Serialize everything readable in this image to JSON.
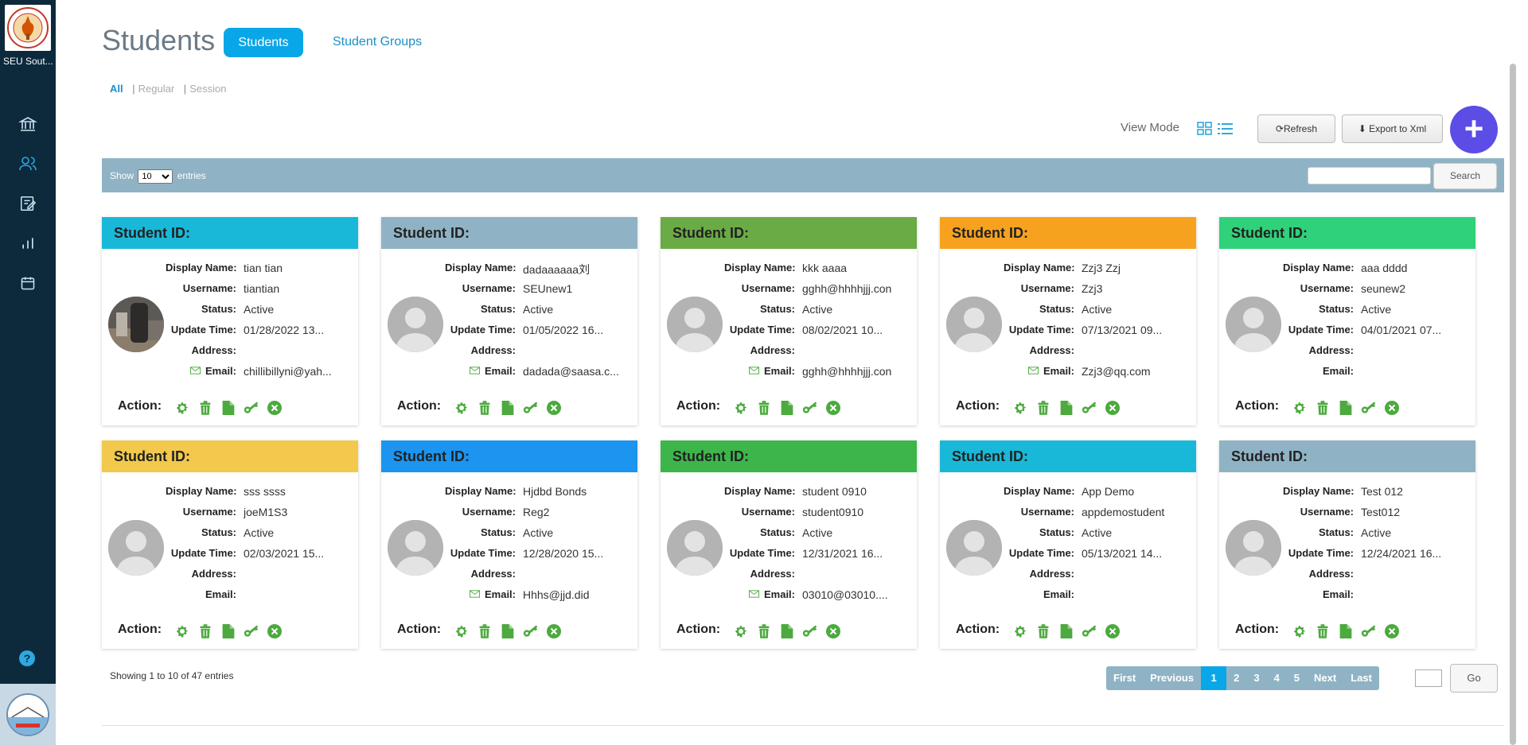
{
  "sidebar": {
    "org_name": "SEU Sout...",
    "nav": [
      "bank-icon",
      "users-icon",
      "edit-icon",
      "chart-icon",
      "calendar-icon"
    ],
    "help": "?"
  },
  "header": {
    "title": "Students",
    "tab_students": "Students",
    "tab_groups": "Student Groups"
  },
  "filters": {
    "all": "All",
    "regular": "Regular",
    "session": "Session"
  },
  "toolbar": {
    "view_mode": "View Mode",
    "refresh": "Refresh",
    "export": "Export to Xml",
    "add": "+"
  },
  "table_bar": {
    "show": "Show",
    "entries_value": "10",
    "entries": "entries",
    "search_btn": "Search"
  },
  "labels": {
    "student_id": "Student ID:",
    "display_name": "Display Name:",
    "username": "Username:",
    "status": "Status:",
    "update_time": "Update Time:",
    "address": "Address:",
    "email": "Email:",
    "action": "Action:"
  },
  "colors": {
    "sidebar": "#0c2a3c",
    "accent": "#0aa7e8",
    "add_button": "#5b4de6",
    "action_icon": "#4caa3e"
  },
  "students": [
    {
      "header_color": "#1ab8d8",
      "display_name": "tian tian",
      "username": "tiantian",
      "status": "Active",
      "update_time": "01/28/2022 13...",
      "address": "",
      "email": "chillibillyni@yah...",
      "has_email_icon": true,
      "photo": true
    },
    {
      "header_color": "#8fb3c4",
      "display_name": "dadaaaaaa刘",
      "username": "SEUnew1",
      "status": "Active",
      "update_time": "01/05/2022 16...",
      "address": "",
      "email": "dadada@saasa.c...",
      "has_email_icon": true,
      "photo": false
    },
    {
      "header_color": "#6aab45",
      "display_name": "kkk aaaa",
      "username": "gghh@hhhhjjj.con",
      "status": "Active",
      "update_time": "08/02/2021 10...",
      "address": "",
      "email": "gghh@hhhhjjj.con",
      "has_email_icon": true,
      "photo": false
    },
    {
      "header_color": "#f7a21f",
      "display_name": "Zzj3 Zzj",
      "username": "Zzj3",
      "status": "Active",
      "update_time": "07/13/2021 09...",
      "address": "",
      "email": "Zzj3@qq.com",
      "has_email_icon": true,
      "photo": false
    },
    {
      "header_color": "#2fd17a",
      "display_name": "aaa dddd",
      "username": "seunew2",
      "status": "Active",
      "update_time": "04/01/2021 07...",
      "address": "",
      "email": "",
      "has_email_icon": false,
      "photo": false
    },
    {
      "header_color": "#f2c94c",
      "display_name": "sss ssss",
      "username": "joeM1S3",
      "status": "Active",
      "update_time": "02/03/2021 15...",
      "address": "",
      "email": "",
      "has_email_icon": false,
      "photo": false
    },
    {
      "header_color": "#1b95ef",
      "display_name": "Hjdbd Bonds",
      "username": "Reg2",
      "status": "Active",
      "update_time": "12/28/2020 15...",
      "address": "",
      "email": "Hhhs@jjd.did",
      "has_email_icon": true,
      "photo": false
    },
    {
      "header_color": "#3db54a",
      "display_name": "student 0910",
      "username": "student0910",
      "status": "Active",
      "update_time": "12/31/2021 16...",
      "address": "",
      "email": "03010@03010....",
      "has_email_icon": true,
      "photo": false
    },
    {
      "header_color": "#1ab8d8",
      "display_name": "App Demo",
      "username": "appdemostudent",
      "status": "Active",
      "update_time": "05/13/2021 14...",
      "address": "",
      "email": "",
      "has_email_icon": false,
      "photo": false
    },
    {
      "header_color": "#8fb3c4",
      "display_name": "Test 012",
      "username": "Test012",
      "status": "Active",
      "update_time": "12/24/2021 16...",
      "address": "",
      "email": "",
      "has_email_icon": false,
      "photo": false
    }
  ],
  "footer": {
    "showing": "Showing 1 to 10 of 47 entries",
    "pages": [
      "First",
      "Previous",
      "1",
      "2",
      "3",
      "4",
      "5",
      "Next",
      "Last"
    ],
    "current_page": "1",
    "go": "Go"
  }
}
